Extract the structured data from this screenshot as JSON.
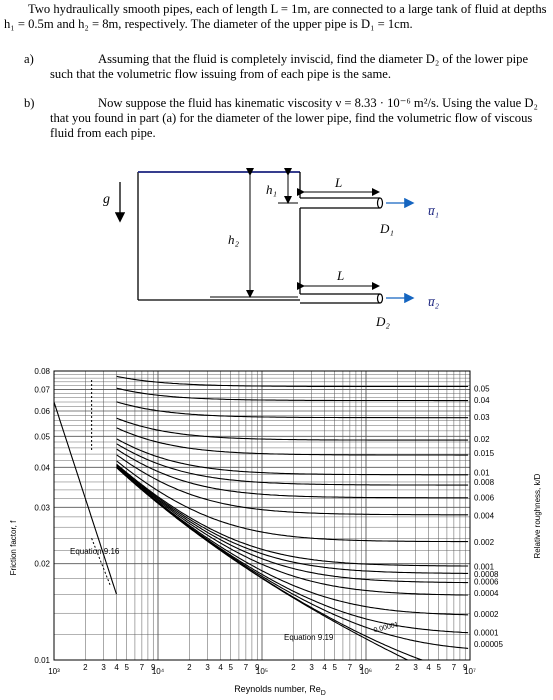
{
  "problem": {
    "intro": "Two hydraulically smooth pipes, each of length L = 1m, are connected to a large tank of fluid at depths h₁ = 0.5m and h₂ = 8m, respectively.  The diameter of the upper pipe is D₁ = 1cm.",
    "part_a_label": "a)",
    "part_a": "Assuming that the fluid is completely inviscid, find the diameter D₂ of the lower pipe such that the volumetric flow issuing from of each pipe is the same.",
    "part_b_label": "b)",
    "part_b": "Now suppose the fluid has kinematic viscosity ν = 8.33 · 10⁻⁶ m²/s. Using the value D₂ that you found in part (a) for the diameter of the lower pipe, find the volumetric flow of viscous fluid from each pipe."
  },
  "diagram": {
    "g": "g",
    "h1": "h₁",
    "h2": "h₂",
    "L_top": "L",
    "L_bottom": "L",
    "D1": "D₁",
    "D2": "D₂",
    "u1": "u̅₁",
    "u2": "u̅₂",
    "water_color": "#1a237e",
    "arrow_color": "#1565c0"
  },
  "chart_data": {
    "type": "line",
    "ylabel": "Friction factor, f",
    "xlabel": "Reynolds number, Re",
    "xlabel_sub": "D",
    "y2label": "Relative roughness, k/D",
    "xscale": "log",
    "yscale": "log",
    "xlim": [
      1000,
      10000000
    ],
    "ylim": [
      0.01,
      0.08
    ],
    "y_ticks": [
      "0.08",
      "0.07",
      "0.06",
      "0.05",
      "0.04",
      "0.03",
      "0.02",
      "0.01"
    ],
    "x_decade_labels": [
      "10³",
      "10⁴",
      "10⁵",
      "10⁶",
      "10⁷"
    ],
    "x_minor_labels": [
      "2",
      "3",
      "4",
      "5",
      "7",
      "9"
    ],
    "annotations": [
      "Equation 9.16",
      "Equation 9.19"
    ],
    "roughness_labels": [
      "0.05",
      "0.04",
      "0.03",
      "0.02",
      "0.015",
      "0.01",
      "0.008",
      "0.006",
      "0.004",
      "0.002",
      "0.001",
      "0.0008",
      "0.0006",
      "0.0004",
      "0.0002",
      "0.0001",
      "0.00005",
      "0.00001"
    ],
    "series": [
      {
        "name": "0.05",
        "values": [
          0.072
        ]
      },
      {
        "name": "0.04",
        "values": [
          0.065
        ]
      },
      {
        "name": "0.03",
        "values": [
          0.057
        ]
      },
      {
        "name": "0.02",
        "values": [
          0.049
        ]
      },
      {
        "name": "0.015",
        "values": [
          0.044
        ]
      },
      {
        "name": "0.01",
        "values": [
          0.038
        ]
      },
      {
        "name": "0.008",
        "values": [
          0.036
        ]
      },
      {
        "name": "0.006",
        "values": [
          0.032
        ]
      },
      {
        "name": "0.004",
        "values": [
          0.028
        ]
      },
      {
        "name": "0.002",
        "values": [
          0.0235
        ]
      },
      {
        "name": "0.001",
        "values": [
          0.0197
        ]
      },
      {
        "name": "0.0008",
        "values": [
          0.0186
        ]
      },
      {
        "name": "0.0006",
        "values": [
          0.0175
        ]
      },
      {
        "name": "0.0004",
        "values": [
          0.016
        ]
      },
      {
        "name": "0.0002",
        "values": [
          0.0137
        ]
      },
      {
        "name": "0.0001",
        "values": [
          0.012
        ]
      },
      {
        "name": "0.00005",
        "values": [
          0.0107
        ]
      }
    ]
  }
}
